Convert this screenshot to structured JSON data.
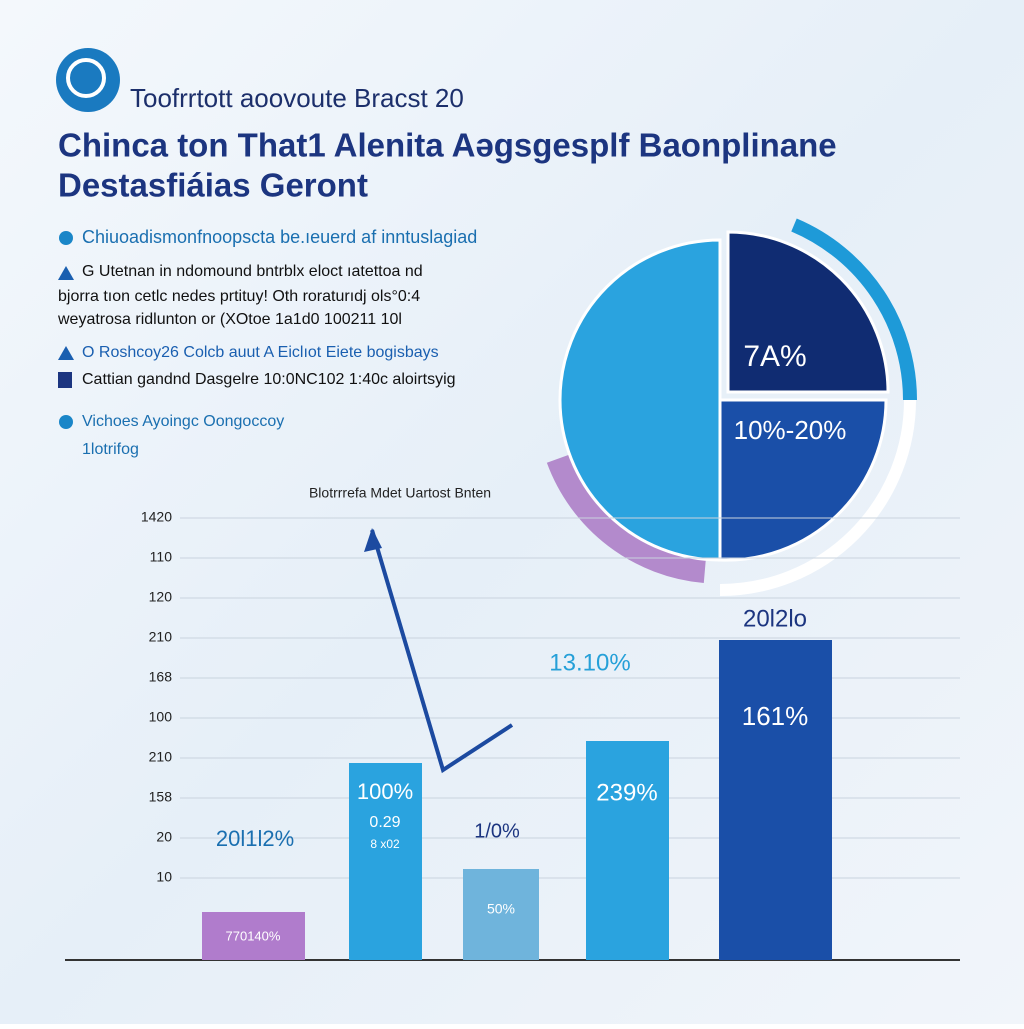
{
  "header": {
    "subtitle": "Toofrrtott aoovoute Bracst 20",
    "title": [
      "Chinca ton That1 Alenita Aəgsgesplf Baonplinane",
      "Destasfiáias Geront"
    ]
  },
  "bullets": [
    {
      "lines": [
        "Chiuoadismonfnoopscta be.ıeuerd af inntuslagiad"
      ]
    },
    {
      "lines": [
        "G Utetnan in ndomound bntrblx eloct ıatettoa nd",
        "bjorra tıon cetlc nedes prtituy! Oth roraturıdj ols°0:4",
        "weyatrosa ridlunton  or  (XOtoe  1a1d0  100211  10l"
      ]
    },
    {
      "lines": [
        "O Roshcoy26 Colcb auut A Eiclıot Eiete bogisbays",
        "Cattian gandnd Dasgelre  10:0NC102 1:40c aloirtsyig"
      ]
    },
    {
      "lines": [
        "Vichoes Ayoingc Oongoccoy",
        "1lotrifog"
      ]
    }
  ],
  "pie": {
    "labels": [
      "7A%",
      "10%-20%"
    ]
  },
  "bar_chart": {
    "caption": "Blotrrrefa Mdet Uartost Bnten",
    "y_labels": [
      "1420",
      "110",
      "120",
      "210",
      "168",
      "100",
      "210",
      "158",
      "20",
      "10"
    ],
    "bar_labels": [
      "770140%",
      "100%",
      "0.29",
      "8 x02",
      "50%",
      "239%",
      "161%"
    ],
    "annotations": [
      "20l1l2%",
      "1/0%",
      "13.10%",
      "20l2lo"
    ]
  }
}
